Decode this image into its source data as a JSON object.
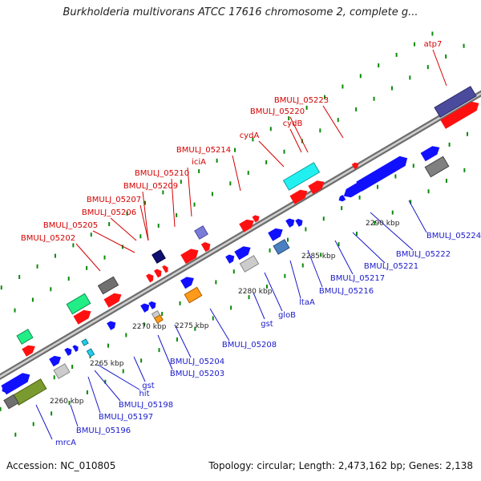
{
  "title": "Burkholderia multivorans ATCC 17616 chromosome 2, complete g...",
  "footer": {
    "accession": "Accession: NC_010805",
    "summary": "Topology: circular; Length: 2,473,162 bp; Genes: 2,138"
  },
  "colors": {
    "label_top": "#d40000",
    "label_bottom": "#1a1acc",
    "backbone": "#9a9a9a",
    "tick": "#0a8a0a"
  },
  "ruler": [
    {
      "label": "2260 kbp",
      "at": 2260
    },
    {
      "label": "2265 kbp",
      "at": 2265
    },
    {
      "label": "2270 kbp",
      "at": 2270
    },
    {
      "label": "2275 kbp",
      "at": 2275
    },
    {
      "label": "2280 kbp",
      "at": 2280
    },
    {
      "label": "2285 kbp",
      "at": 2285
    },
    {
      "label": "2290 kbp",
      "at": 2290
    }
  ],
  "top_labels": [
    {
      "text": "atp7"
    },
    {
      "text": "BMULJ_05223"
    },
    {
      "text": "BMULJ_05220"
    },
    {
      "text": "cydB"
    },
    {
      "text": "cydA"
    },
    {
      "text": "BMULJ_05214"
    },
    {
      "text": "iciA"
    },
    {
      "text": "BMULJ_05210"
    },
    {
      "text": "BMULJ_05209"
    },
    {
      "text": "BMULJ_05207"
    },
    {
      "text": "BMULJ_05206"
    },
    {
      "text": "BMULJ_05205"
    },
    {
      "text": "BMULJ_05202"
    }
  ],
  "bottom_labels": [
    {
      "text": "BMULJ_05224"
    },
    {
      "text": "BMULJ_05222"
    },
    {
      "text": "BMULJ_05221"
    },
    {
      "text": "BMULJ_05217"
    },
    {
      "text": "BMULJ_05216"
    },
    {
      "text": "ltaA"
    },
    {
      "text": "gloB"
    },
    {
      "text": "gst"
    },
    {
      "text": "BMULJ_05208"
    },
    {
      "text": "BMULJ_05204"
    },
    {
      "text": "BMULJ_05203"
    },
    {
      "text": "gst"
    },
    {
      "text": "hit"
    },
    {
      "text": "BMULJ_05198"
    },
    {
      "text": "BMULJ_05197"
    },
    {
      "text": "BMULJ_05196"
    },
    {
      "text": "mrcA"
    }
  ]
}
